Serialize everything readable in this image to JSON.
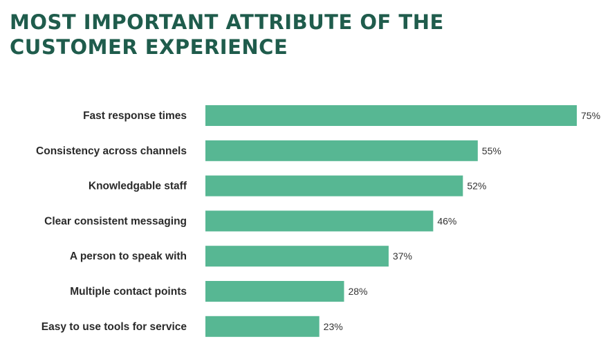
{
  "title": {
    "line1": "MOST IMPORTANT ATTRIBUTE OF THE",
    "line2": "CUSTOMER EXPERIENCE"
  },
  "colors": {
    "title": "#1f5c4c",
    "bar": "#57b793"
  },
  "chart_data": {
    "type": "bar",
    "orientation": "horizontal",
    "title": "MOST IMPORTANT ATTRIBUTE OF THE CUSTOMER EXPERIENCE",
    "categories": [
      "Fast response times",
      "Consistency across channels",
      "Knowledgable staff",
      "Clear consistent messaging",
      "A person to speak with",
      "Multiple contact points",
      "Easy to use tools for service"
    ],
    "values": [
      75,
      55,
      52,
      46,
      37,
      28,
      23
    ],
    "labels": [
      "75%",
      "55%",
      "52%",
      "46%",
      "37%",
      "28%",
      "23%"
    ],
    "unit": "%",
    "xlim": [
      0,
      75
    ],
    "grid": false,
    "legend": "none"
  }
}
